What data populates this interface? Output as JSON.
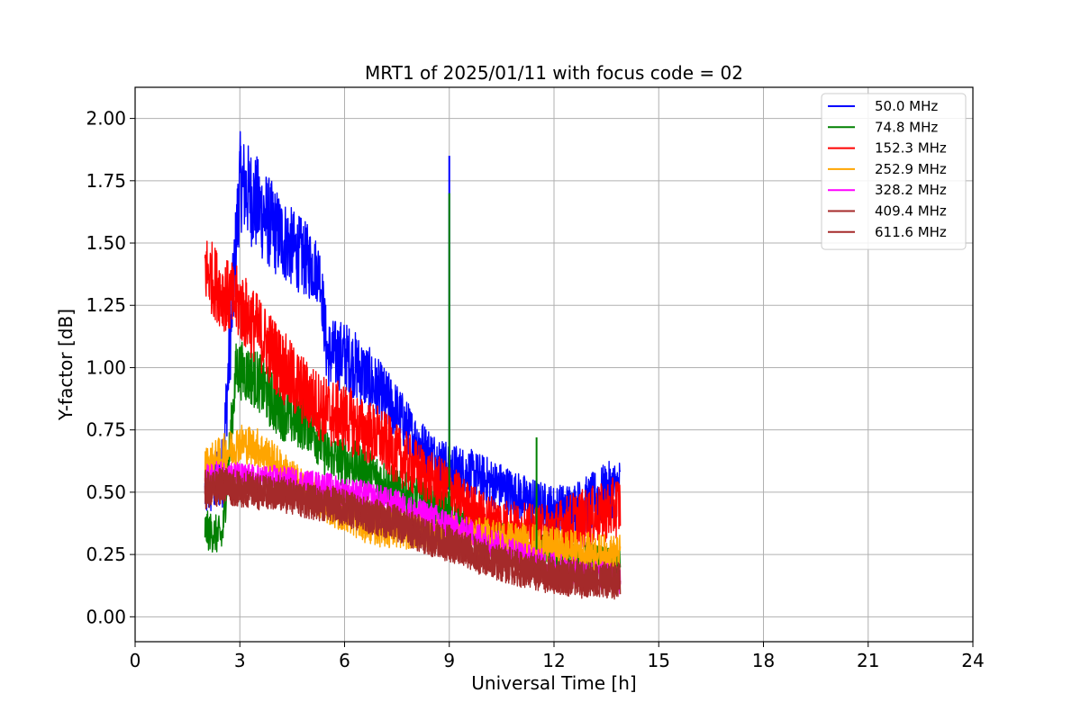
{
  "chart_data": {
    "type": "line",
    "title": "MRT1 of 2025/01/11 with focus code = 02",
    "xlabel": "Universal Time [h]",
    "ylabel": "Y-factor [dB]",
    "xlim": [
      0,
      24
    ],
    "ylim": [
      -0.1,
      2.125
    ],
    "xticks": [
      0,
      3,
      6,
      9,
      12,
      15,
      18,
      21,
      24
    ],
    "xtick_labels": [
      "0",
      "3",
      "6",
      "9",
      "12",
      "15",
      "18",
      "21",
      "24"
    ],
    "yticks": [
      0.0,
      0.25,
      0.5,
      0.75,
      1.0,
      1.25,
      1.5,
      1.75,
      2.0
    ],
    "ytick_labels": [
      "0.00",
      "0.25",
      "0.50",
      "0.75",
      "1.00",
      "1.25",
      "1.50",
      "1.75",
      "2.00"
    ],
    "grid": true,
    "legend_position": "top-right",
    "series": [
      {
        "name": "50.0 MHz",
        "color": "#0000ff",
        "x": [
          2.0,
          2.5,
          3.0,
          3.5,
          4.0,
          4.5,
          5.0,
          5.3,
          5.5,
          6.0,
          6.5,
          7.0,
          7.5,
          8.0,
          8.5,
          9.0,
          9.5,
          10.0,
          10.5,
          11.0,
          11.5,
          12.0,
          12.5,
          13.0,
          13.5,
          13.9
        ],
        "y": [
          0.5,
          0.58,
          1.75,
          1.65,
          1.55,
          1.48,
          1.42,
          1.38,
          1.05,
          1.05,
          0.98,
          0.9,
          0.82,
          0.72,
          0.65,
          0.6,
          0.58,
          0.55,
          0.52,
          0.48,
          0.45,
          0.43,
          0.44,
          0.45,
          0.5,
          0.52
        ],
        "amplitude": [
          0.12,
          0.15,
          0.2,
          0.2,
          0.18,
          0.16,
          0.15,
          0.12,
          0.15,
          0.14,
          0.14,
          0.13,
          0.12,
          0.1,
          0.1,
          0.1,
          0.1,
          0.1,
          0.1,
          0.1,
          0.1,
          0.1,
          0.1,
          0.12,
          0.12,
          0.12
        ]
      },
      {
        "name": "74.8 MHz",
        "color": "#008000",
        "x": [
          2.0,
          2.5,
          2.9,
          3.5,
          4.0,
          4.5,
          5.0,
          5.5,
          6.0,
          6.5,
          7.0,
          7.5,
          8.0,
          8.5,
          9.0,
          9.5,
          10.0,
          10.5,
          11.0,
          11.5,
          12.0,
          12.5,
          13.0,
          13.5,
          13.9
        ],
        "y": [
          0.35,
          0.32,
          1.0,
          0.95,
          0.85,
          0.8,
          0.78,
          0.65,
          0.62,
          0.6,
          0.55,
          0.5,
          0.48,
          0.45,
          0.42,
          0.35,
          0.32,
          0.3,
          0.28,
          0.27,
          0.25,
          0.24,
          0.22,
          0.2,
          0.2
        ],
        "amplitude": [
          0.08,
          0.08,
          0.12,
          0.12,
          0.12,
          0.12,
          0.12,
          0.1,
          0.1,
          0.1,
          0.1,
          0.09,
          0.09,
          0.09,
          0.09,
          0.08,
          0.08,
          0.08,
          0.08,
          0.08,
          0.08,
          0.08,
          0.08,
          0.08,
          0.08
        ]
      },
      {
        "name": "152.3 MHz",
        "color": "#ff0000",
        "x": [
          2.0,
          2.5,
          3.0,
          3.5,
          4.0,
          4.5,
          5.0,
          5.5,
          6.0,
          6.5,
          7.0,
          7.5,
          8.0,
          8.5,
          9.0,
          9.5,
          10.0,
          10.5,
          11.0,
          11.5,
          12.0,
          12.5,
          13.0,
          13.5,
          13.9
        ],
        "y": [
          1.4,
          1.3,
          1.25,
          1.15,
          1.05,
          0.95,
          0.88,
          0.82,
          0.8,
          0.75,
          0.72,
          0.65,
          0.6,
          0.55,
          0.52,
          0.45,
          0.4,
          0.38,
          0.36,
          0.35,
          0.36,
          0.38,
          0.4,
          0.42,
          0.45
        ],
        "amplitude": [
          0.15,
          0.15,
          0.15,
          0.15,
          0.15,
          0.15,
          0.14,
          0.14,
          0.14,
          0.13,
          0.13,
          0.12,
          0.12,
          0.11,
          0.1,
          0.1,
          0.1,
          0.1,
          0.1,
          0.1,
          0.1,
          0.12,
          0.12,
          0.12,
          0.13
        ]
      },
      {
        "name": "252.9 MHz",
        "color": "#ffa500",
        "x": [
          2.0,
          2.5,
          3.0,
          3.5,
          4.0,
          4.5,
          5.0,
          5.5,
          6.0,
          6.5,
          7.0,
          7.5,
          8.0,
          8.5,
          9.0,
          9.5,
          10.0,
          10.5,
          11.0,
          11.5,
          12.0,
          12.5,
          13.0,
          13.5,
          13.9
        ],
        "y": [
          0.6,
          0.65,
          0.7,
          0.68,
          0.62,
          0.55,
          0.5,
          0.45,
          0.42,
          0.38,
          0.36,
          0.35,
          0.35,
          0.34,
          0.33,
          0.32,
          0.32,
          0.31,
          0.3,
          0.29,
          0.28,
          0.27,
          0.26,
          0.25,
          0.25
        ],
        "amplitude": [
          0.08,
          0.08,
          0.08,
          0.08,
          0.08,
          0.08,
          0.08,
          0.08,
          0.08,
          0.08,
          0.08,
          0.08,
          0.08,
          0.08,
          0.08,
          0.08,
          0.08,
          0.08,
          0.08,
          0.08,
          0.08,
          0.08,
          0.08,
          0.08,
          0.08
        ]
      },
      {
        "name": "328.2 MHz",
        "color": "#ff00ff",
        "x": [
          2.0,
          2.5,
          3.0,
          3.5,
          4.0,
          4.5,
          5.0,
          5.5,
          6.0,
          6.5,
          7.0,
          7.5,
          8.0,
          8.5,
          9.0,
          9.5,
          10.0,
          10.5,
          11.0,
          11.5,
          12.0,
          12.5,
          13.0,
          13.5,
          13.9
        ],
        "y": [
          0.55,
          0.57,
          0.56,
          0.55,
          0.55,
          0.54,
          0.53,
          0.52,
          0.5,
          0.49,
          0.47,
          0.45,
          0.42,
          0.4,
          0.37,
          0.34,
          0.31,
          0.28,
          0.25,
          0.22,
          0.2,
          0.18,
          0.17,
          0.16,
          0.15
        ],
        "amplitude": [
          0.06,
          0.06,
          0.06,
          0.06,
          0.06,
          0.06,
          0.06,
          0.06,
          0.06,
          0.06,
          0.06,
          0.06,
          0.06,
          0.06,
          0.06,
          0.06,
          0.06,
          0.06,
          0.06,
          0.06,
          0.06,
          0.06,
          0.06,
          0.06,
          0.06
        ]
      },
      {
        "name": "409.4 MHz",
        "color": "#a52a2a",
        "x": [
          2.0,
          2.5,
          3.0,
          3.5,
          4.0,
          4.5,
          5.0,
          5.5,
          6.0,
          6.5,
          7.0,
          7.5,
          8.0,
          8.5,
          9.0,
          9.5,
          10.0,
          10.5,
          11.0,
          11.5,
          12.0,
          12.5,
          13.0,
          13.5,
          13.9
        ],
        "y": [
          0.52,
          0.53,
          0.52,
          0.51,
          0.5,
          0.49,
          0.47,
          0.46,
          0.44,
          0.42,
          0.4,
          0.38,
          0.35,
          0.32,
          0.3,
          0.27,
          0.24,
          0.22,
          0.2,
          0.18,
          0.17,
          0.16,
          0.15,
          0.15,
          0.15
        ],
        "amplitude": [
          0.07,
          0.07,
          0.07,
          0.07,
          0.07,
          0.07,
          0.07,
          0.07,
          0.07,
          0.07,
          0.07,
          0.07,
          0.07,
          0.07,
          0.07,
          0.07,
          0.07,
          0.07,
          0.07,
          0.07,
          0.07,
          0.07,
          0.07,
          0.07,
          0.07
        ]
      },
      {
        "name": "611.6 MHz",
        "color": "#a52a2a",
        "x": [
          2.0,
          2.5,
          3.0,
          3.5,
          4.0,
          4.5,
          5.0,
          5.5,
          6.0,
          6.5,
          7.0,
          7.5,
          8.0,
          8.5,
          9.0,
          9.5,
          10.0,
          10.5,
          11.0,
          11.5,
          12.0,
          12.5,
          13.0,
          13.5,
          13.9
        ],
        "y": [
          0.5,
          0.52,
          0.51,
          0.5,
          0.49,
          0.48,
          0.46,
          0.45,
          0.43,
          0.41,
          0.39,
          0.37,
          0.34,
          0.31,
          0.29,
          0.26,
          0.23,
          0.21,
          0.19,
          0.17,
          0.16,
          0.15,
          0.14,
          0.14,
          0.14
        ],
        "amplitude": [
          0.07,
          0.07,
          0.07,
          0.07,
          0.07,
          0.07,
          0.07,
          0.07,
          0.07,
          0.07,
          0.07,
          0.07,
          0.07,
          0.07,
          0.07,
          0.07,
          0.07,
          0.07,
          0.07,
          0.07,
          0.07,
          0.07,
          0.07,
          0.07,
          0.07
        ]
      }
    ],
    "spikes": [
      {
        "name": "50.0 MHz",
        "x": 9.0,
        "y": 1.85
      },
      {
        "name": "74.8 MHz",
        "x": 9.0,
        "y": 1.7
      },
      {
        "name": "74.8 MHz",
        "x": 11.5,
        "y": 0.72
      }
    ]
  }
}
